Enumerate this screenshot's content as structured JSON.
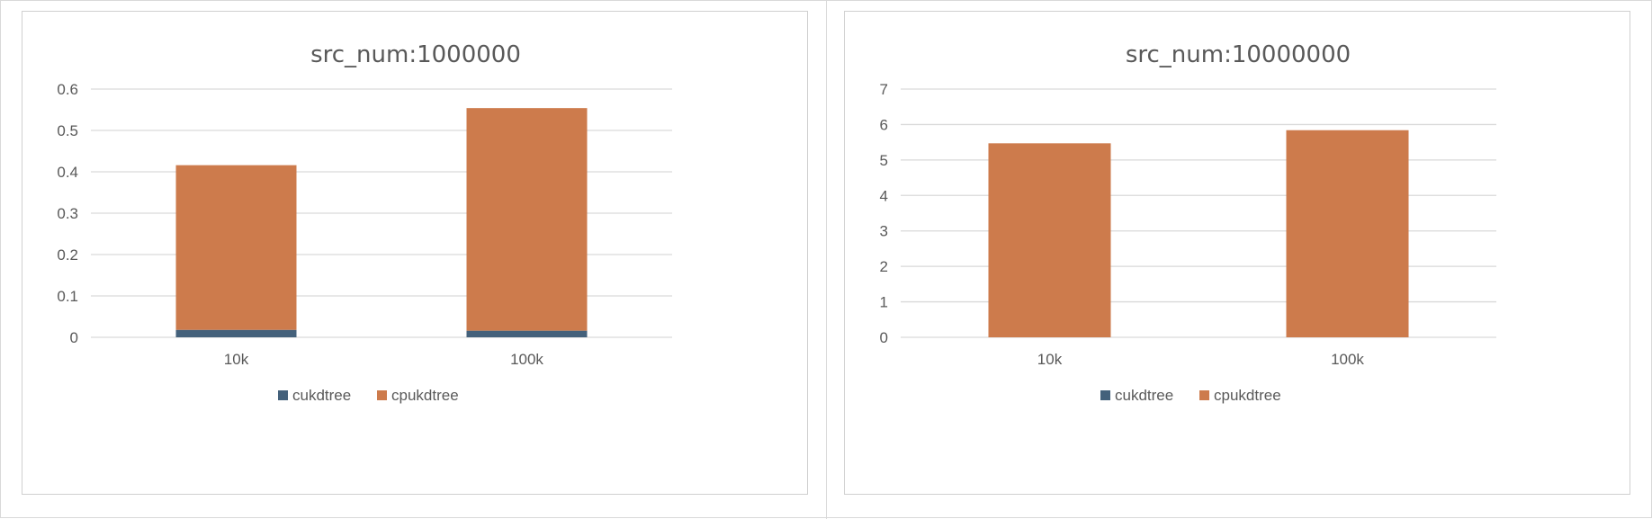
{
  "chart_data": [
    {
      "type": "bar",
      "stacked": true,
      "title": "src_num:1000000",
      "categories": [
        "10k",
        "100k"
      ],
      "series": [
        {
          "name": "cukdtree",
          "values": [
            0.018,
            0.016
          ],
          "color": "#44617b"
        },
        {
          "name": "cpukdtree",
          "values": [
            0.398,
            0.538
          ],
          "color": "#cd7b4c"
        }
      ],
      "ylim": [
        0,
        0.6
      ],
      "yticks": [
        "0",
        "0.1",
        "0.2",
        "0.3",
        "0.4",
        "0.5",
        "0.6"
      ],
      "grid": true,
      "legend": "bottom"
    },
    {
      "type": "bar",
      "stacked": true,
      "title": "src_num:10000000",
      "categories": [
        "10k",
        "100k"
      ],
      "series": [
        {
          "name": "cukdtree",
          "values": [
            0.0,
            0.0
          ],
          "color": "#44617b"
        },
        {
          "name": "cpukdtree",
          "values": [
            5.47,
            5.84
          ],
          "color": "#cd7b4c"
        }
      ],
      "ylim": [
        0,
        7
      ],
      "yticks": [
        "0",
        "1",
        "2",
        "3",
        "4",
        "5",
        "6",
        "7"
      ],
      "grid": true,
      "legend": "bottom"
    }
  ]
}
